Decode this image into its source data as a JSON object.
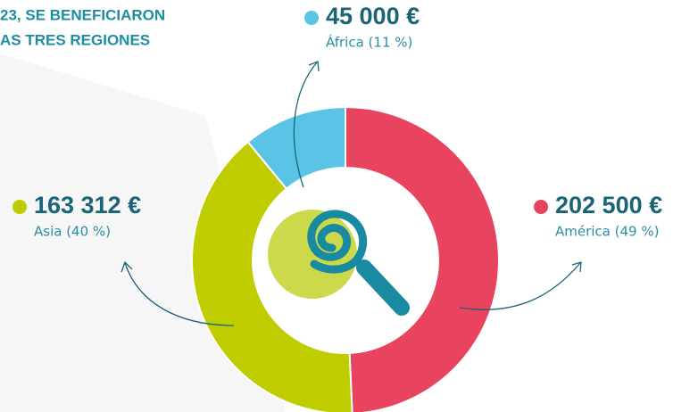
{
  "chart_data": {
    "type": "donut",
    "title": [
      "23, SE BENEFICIARON",
      "AS TRES REGIONES"
    ],
    "categories": [
      "América (49 %)",
      "Asia (40 %)",
      "África (11 %)"
    ],
    "values": [
      202500,
      163312,
      45000
    ],
    "value_labels": [
      "202 500 €",
      "163 312 €",
      "45 000 €"
    ],
    "colors": [
      "#e8435f",
      "#bfcc00",
      "#5bc4e6"
    ]
  }
}
